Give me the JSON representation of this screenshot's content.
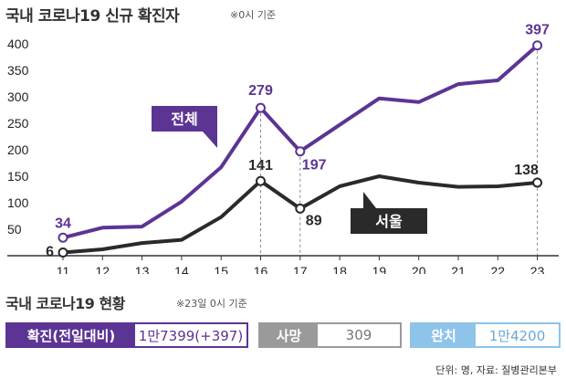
{
  "title": "국내 코로나19 신규 확진자",
  "title_note": "※0시 기준",
  "chart_data": {
    "type": "line",
    "x": [
      "11",
      "12",
      "13",
      "14",
      "15",
      "16",
      "17",
      "18",
      "19",
      "20",
      "21",
      "22",
      "23"
    ],
    "yticks": [
      "50",
      "100",
      "150",
      "200",
      "250",
      "300",
      "350",
      "400"
    ],
    "ylim": [
      0,
      410
    ],
    "series": [
      {
        "name": "전체",
        "color": "#5c3494",
        "values": [
          34,
          53,
          55,
          102,
          167,
          279,
          197,
          247,
          297,
          290,
          324,
          331,
          397
        ]
      },
      {
        "name": "서울",
        "color": "#2a2a2a",
        "values": [
          6,
          12,
          24,
          30,
          73,
          141,
          89,
          131,
          150,
          138,
          130,
          131,
          138
        ]
      }
    ],
    "data_labels": [
      {
        "series": 0,
        "index": 0,
        "text": "34"
      },
      {
        "series": 0,
        "index": 5,
        "text": "279"
      },
      {
        "series": 0,
        "index": 6,
        "text": "197"
      },
      {
        "series": 0,
        "index": 12,
        "text": "397"
      },
      {
        "series": 1,
        "index": 0,
        "text": "6"
      },
      {
        "series": 1,
        "index": 5,
        "text": "141"
      },
      {
        "series": 1,
        "index": 6,
        "text": "89"
      },
      {
        "series": 1,
        "index": 12,
        "text": "138"
      }
    ],
    "highlight_indices": [
      5,
      6,
      12
    ]
  },
  "summary": {
    "title": "국내 코로나19 현황",
    "note": "※23일 0시 기준",
    "confirmed": {
      "label": "확진(전일대비)",
      "value": "1만7399(+397)"
    },
    "deaths": {
      "label": "사망",
      "value": "309"
    },
    "recovered": {
      "label": "완치",
      "value": "1만4200"
    }
  },
  "source": "단위: 명, 자료: 질병관리본부"
}
